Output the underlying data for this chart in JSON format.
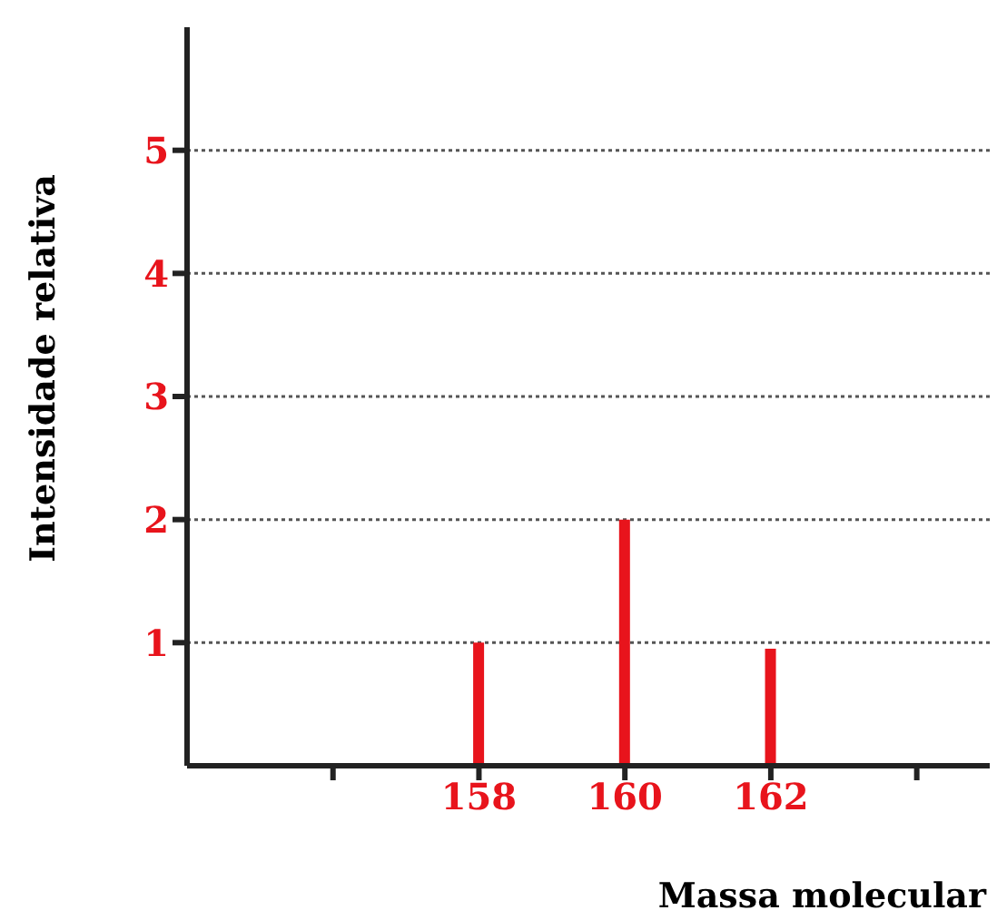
{
  "chart_data": {
    "type": "bar",
    "xlabel": "Massa molecular",
    "ylabel": "Intensidade relativa",
    "x": [
      158,
      160,
      162
    ],
    "values": [
      1.0,
      2.0,
      0.95
    ],
    "color": "#e8141c",
    "xlim": [
      154,
      165
    ],
    "xticks": [
      {
        "value": 156,
        "label": null
      },
      158,
      160,
      162,
      {
        "value": 164,
        "label": null
      }
    ],
    "ylim": [
      0,
      6
    ],
    "yticks": [
      1,
      2,
      3,
      4,
      5
    ],
    "grid": "y"
  }
}
